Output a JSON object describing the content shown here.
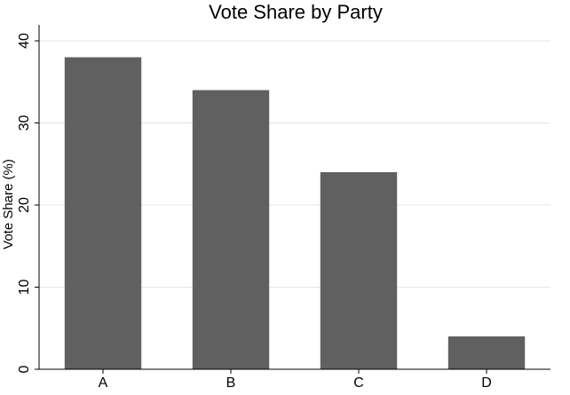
{
  "chart_data": {
    "type": "bar",
    "title": "Vote Share by Party",
    "xlabel": "",
    "ylabel": "Vote Share (%)",
    "categories": [
      "A",
      "B",
      "C",
      "D"
    ],
    "values": [
      38,
      34,
      24,
      4
    ],
    "ylim": [
      0,
      40
    ],
    "yticks": [
      0,
      10,
      20,
      30,
      40
    ],
    "grid": true,
    "legend": "none",
    "bar_color": "#5f605f",
    "grid_color": "#e6e6e6",
    "axis_color": "#000000"
  }
}
